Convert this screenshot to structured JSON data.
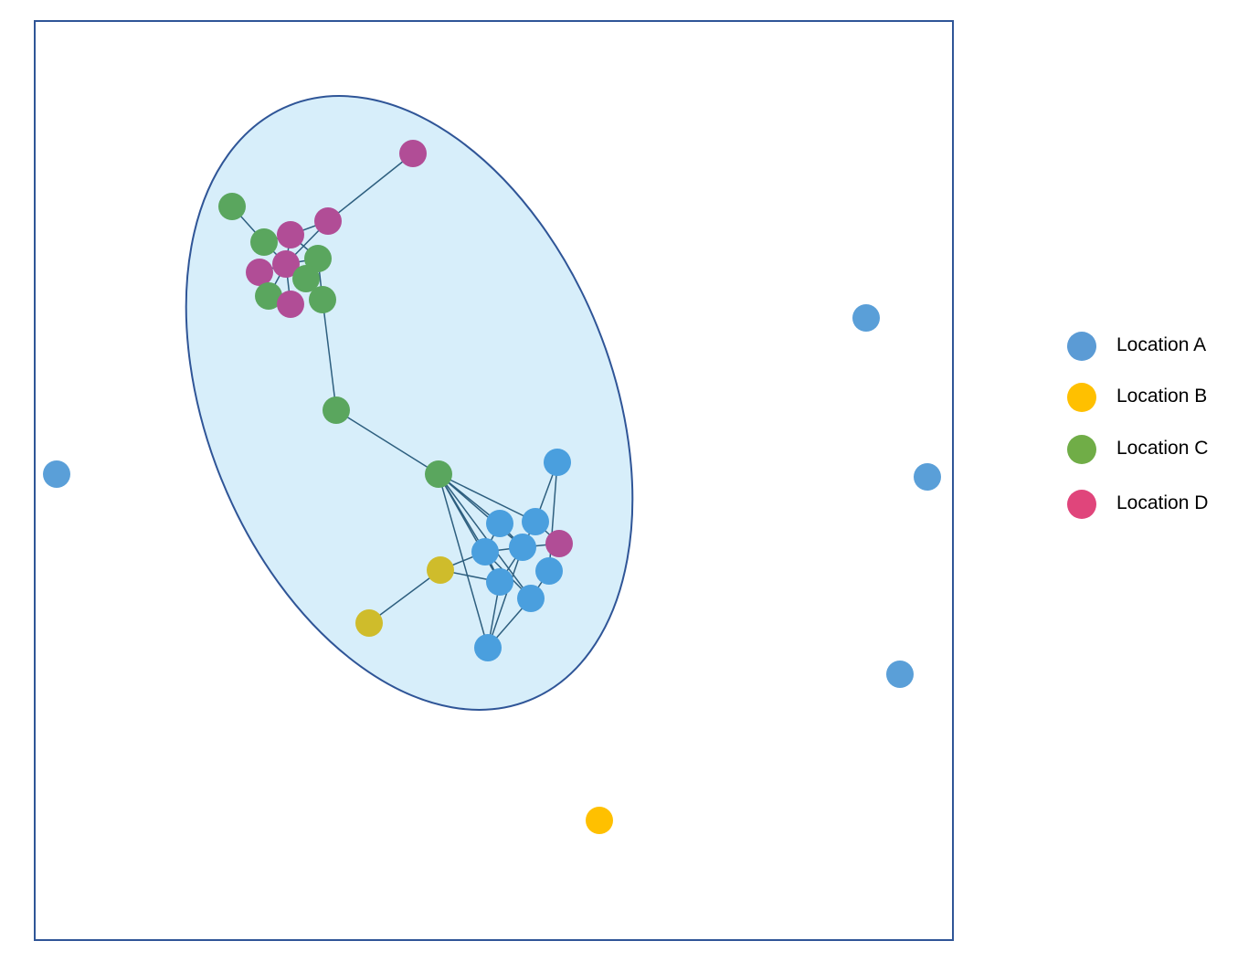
{
  "legend": {
    "items": [
      {
        "label": "Location A",
        "color": "#5b9bd5"
      },
      {
        "label": "Location B",
        "color": "#ffc000"
      },
      {
        "label": "Location C",
        "color": "#70ad47"
      },
      {
        "label": "Location D",
        "color": "#e0457b"
      }
    ]
  },
  "colors": {
    "frame": "#2f5597",
    "cluster_fill": "#d7eefa",
    "cluster_stroke": "#2f5597",
    "edge": "#2e5f7f",
    "node_blue": "#5a9fd8",
    "node_blue_cluster": "#4a9fde",
    "node_green": "#5aa65e",
    "node_magenta": "#b14d96",
    "node_olive": "#cfbc2b",
    "node_orange": "#ffc000"
  }
}
